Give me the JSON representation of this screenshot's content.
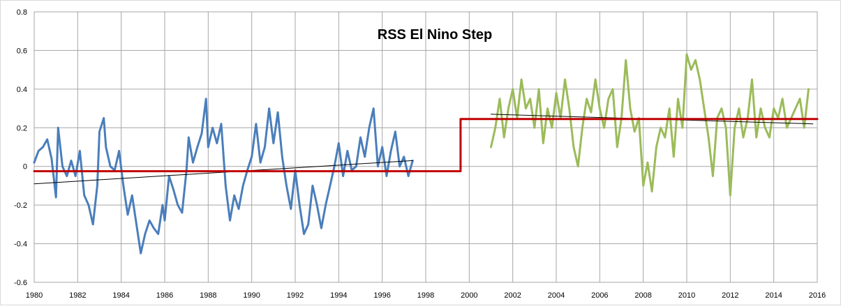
{
  "chart_data": {
    "type": "line",
    "title": "RSS El Nino Step",
    "xlabel": "",
    "ylabel": "",
    "xlim": [
      1980,
      2016
    ],
    "ylim": [
      -0.6,
      0.8
    ],
    "x_ticks": [
      "1980",
      "1982",
      "1984",
      "1986",
      "1988",
      "1990",
      "1992",
      "1994",
      "1996",
      "1998",
      "2000",
      "2002",
      "2004",
      "2006",
      "2008",
      "2010",
      "2012",
      "2014",
      "2016"
    ],
    "y_ticks": [
      "0.8",
      "0.6",
      "0.4",
      "0.2",
      "0",
      "-0.2",
      "-0.4",
      "-0.6"
    ],
    "grid": true,
    "legend": "none",
    "series": [
      {
        "color": "#4a7ebb",
        "x": [
          1980.0,
          1980.2,
          1980.4,
          1980.6,
          1980.8,
          1981.0,
          1981.1,
          1981.3,
          1981.5,
          1981.7,
          1981.9,
          1982.1,
          1982.3,
          1982.5,
          1982.7,
          1982.9,
          1983.0,
          1983.2,
          1983.3,
          1983.5,
          1983.7,
          1983.9,
          1984.1,
          1984.3,
          1984.5,
          1984.7,
          1984.9,
          1985.1,
          1985.3,
          1985.5,
          1985.7,
          1985.9,
          1986.0,
          1986.2,
          1986.4,
          1986.6,
          1986.8,
          1987.0,
          1987.1,
          1987.3,
          1987.5,
          1987.7,
          1987.9,
          1988.0,
          1988.2,
          1988.4,
          1988.6,
          1988.8,
          1989.0,
          1989.2,
          1989.4,
          1989.6,
          1989.8,
          1990.0,
          1990.2,
          1990.4,
          1990.6,
          1990.8,
          1991.0,
          1991.2,
          1991.4,
          1991.6,
          1991.8,
          1992.0,
          1992.2,
          1992.4,
          1992.6,
          1992.8,
          1993.0,
          1993.2,
          1993.4,
          1993.6,
          1993.8,
          1994.0,
          1994.2,
          1994.4,
          1994.6,
          1994.8,
          1995.0,
          1995.2,
          1995.4,
          1995.6,
          1995.8,
          1996.0,
          1996.2,
          1996.4,
          1996.6,
          1996.8,
          1997.0,
          1997.2,
          1997.4
        ],
        "y": [
          0.02,
          0.08,
          0.1,
          0.14,
          0.04,
          -0.16,
          0.2,
          0.0,
          -0.05,
          0.03,
          -0.05,
          0.08,
          -0.15,
          -0.2,
          -0.3,
          -0.1,
          0.18,
          0.25,
          0.1,
          0.0,
          -0.02,
          0.08,
          -0.1,
          -0.25,
          -0.15,
          -0.3,
          -0.45,
          -0.35,
          -0.28,
          -0.32,
          -0.35,
          -0.2,
          -0.28,
          -0.05,
          -0.12,
          -0.2,
          -0.24,
          -0.02,
          0.15,
          0.02,
          0.1,
          0.17,
          0.35,
          0.1,
          0.2,
          0.12,
          0.22,
          -0.1,
          -0.28,
          -0.15,
          -0.22,
          -0.1,
          -0.02,
          0.05,
          0.22,
          0.02,
          0.1,
          0.3,
          0.12,
          0.28,
          0.05,
          -0.1,
          -0.22,
          -0.02,
          -0.2,
          -0.35,
          -0.3,
          -0.1,
          -0.2,
          -0.32,
          -0.2,
          -0.1,
          0.0,
          0.12,
          -0.05,
          0.08,
          -0.02,
          0.0,
          0.15,
          0.05,
          0.2,
          0.3,
          0.0,
          0.1,
          -0.05,
          0.08,
          0.18,
          0.0,
          0.05,
          -0.05,
          0.03
        ]
      },
      {
        "color": "#9bbb59",
        "x": [
          2001.0,
          2001.2,
          2001.4,
          2001.6,
          2001.8,
          2002.0,
          2002.2,
          2002.4,
          2002.6,
          2002.8,
          2003.0,
          2003.2,
          2003.4,
          2003.6,
          2003.8,
          2004.0,
          2004.2,
          2004.4,
          2004.6,
          2004.8,
          2005.0,
          2005.2,
          2005.4,
          2005.6,
          2005.8,
          2006.0,
          2006.2,
          2006.4,
          2006.6,
          2006.8,
          2007.0,
          2007.2,
          2007.4,
          2007.6,
          2007.8,
          2008.0,
          2008.2,
          2008.4,
          2008.6,
          2008.8,
          2009.0,
          2009.2,
          2009.4,
          2009.6,
          2009.8,
          2010.0,
          2010.2,
          2010.4,
          2010.6,
          2010.8,
          2011.0,
          2011.2,
          2011.4,
          2011.6,
          2011.8,
          2012.0,
          2012.2,
          2012.4,
          2012.6,
          2012.8,
          2013.0,
          2013.2,
          2013.4,
          2013.6,
          2013.8,
          2014.0,
          2014.2,
          2014.4,
          2014.6,
          2014.8,
          2015.0,
          2015.2,
          2015.4,
          2015.6
        ],
        "y": [
          0.1,
          0.2,
          0.35,
          0.15,
          0.3,
          0.4,
          0.25,
          0.45,
          0.3,
          0.35,
          0.2,
          0.4,
          0.12,
          0.3,
          0.2,
          0.38,
          0.25,
          0.45,
          0.3,
          0.1,
          0.0,
          0.2,
          0.35,
          0.28,
          0.45,
          0.3,
          0.2,
          0.35,
          0.4,
          0.1,
          0.25,
          0.55,
          0.3,
          0.18,
          0.25,
          -0.1,
          0.02,
          -0.13,
          0.1,
          0.2,
          0.15,
          0.3,
          0.05,
          0.35,
          0.2,
          0.58,
          0.5,
          0.55,
          0.45,
          0.3,
          0.15,
          -0.05,
          0.25,
          0.3,
          0.2,
          -0.15,
          0.2,
          0.3,
          0.15,
          0.25,
          0.45,
          0.15,
          0.3,
          0.2,
          0.15,
          0.3,
          0.25,
          0.35,
          0.2,
          0.25,
          0.3,
          0.35,
          0.2,
          0.4
        ]
      },
      {
        "color": "#000000",
        "x": [
          1980,
          1997.4
        ],
        "y": [
          -0.09,
          0.03
        ]
      },
      {
        "color": "#000000",
        "x": [
          2001,
          2015.8
        ],
        "y": [
          0.27,
          0.22
        ]
      },
      {
        "color": "#c00000",
        "x": [
          1980,
          1999.6,
          1999.6,
          2016
        ],
        "y": [
          -0.025,
          -0.025,
          0.245,
          0.245
        ]
      }
    ]
  }
}
